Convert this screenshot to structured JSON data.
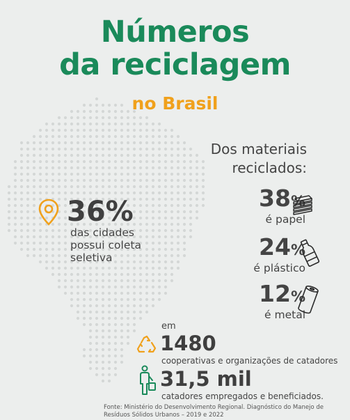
{
  "title": {
    "line1": "Números",
    "line2": "da reciclagem"
  },
  "subtitle": "no Brasil",
  "colors": {
    "green": "#1a8a5a",
    "orange": "#f0a11c",
    "text": "#3f3f3f",
    "background": "#eceeed",
    "map_dots": "#d4d7d6"
  },
  "materials": {
    "heading_line1": "Dos materiais",
    "heading_line2": "reciclados:",
    "items": [
      {
        "value": "38",
        "symbol": "%",
        "label": "é papel",
        "icon": "paper-stack-icon"
      },
      {
        "value": "24",
        "symbol": "%",
        "label": "é plástico",
        "icon": "plastic-bottle-icon"
      },
      {
        "value": "12",
        "symbol": "%",
        "label": "é metal",
        "icon": "can-icon"
      }
    ]
  },
  "cities": {
    "value": "36",
    "symbol": "%",
    "line1": "das cidades",
    "line2": "possui coleta",
    "line3": "seletiva",
    "icon": "location-pin-icon"
  },
  "cooperatives": {
    "prefix": "em",
    "value": "1480",
    "label": "cooperativas e organizações de catadores",
    "icon": "recycle-icon"
  },
  "collectors": {
    "value": "31,5 mil",
    "label": "catadores empregados e beneficiados.",
    "icon": "worker-icon"
  },
  "source": {
    "line1": "Fonte: Ministério do Desenvolvimento Regional. Diagnóstico do Manejo de",
    "line2": "Resíduos Sólidos Urbanos – 2019 e 2022"
  }
}
